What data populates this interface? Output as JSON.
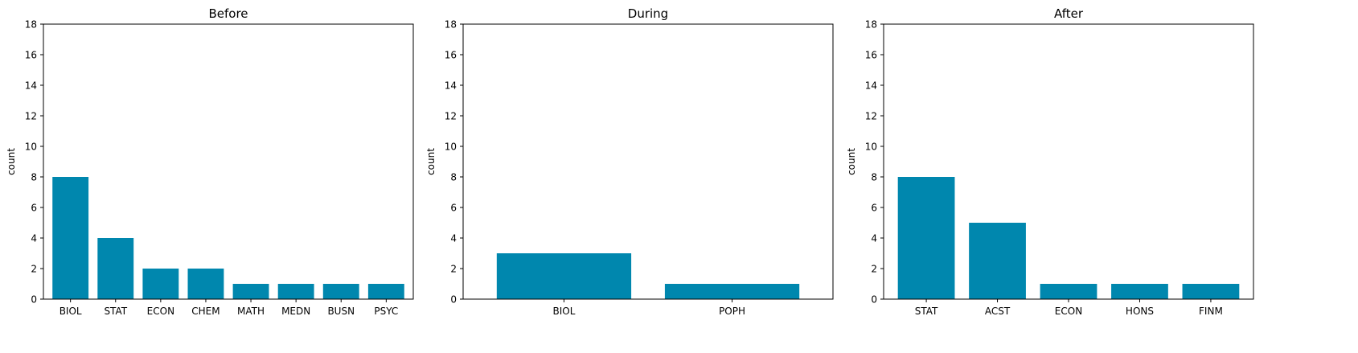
{
  "colors": {
    "bar": "#0087ae",
    "axis": "#000000",
    "background": "#ffffff"
  },
  "chart_data": [
    {
      "type": "bar",
      "title": "Before",
      "ylabel": "count",
      "xlabel": "",
      "ylim": [
        0,
        18
      ],
      "yticks": [
        0,
        2,
        4,
        6,
        8,
        10,
        12,
        14,
        16,
        18
      ],
      "grid": false,
      "categories": [
        "BIOL",
        "STAT",
        "ECON",
        "CHEM",
        "MATH",
        "MEDN",
        "BUSN",
        "PSYC"
      ],
      "values": [
        8,
        4,
        2,
        2,
        1,
        1,
        1,
        1
      ]
    },
    {
      "type": "bar",
      "title": "During",
      "ylabel": "count",
      "xlabel": "",
      "ylim": [
        0,
        18
      ],
      "yticks": [
        0,
        2,
        4,
        6,
        8,
        10,
        12,
        14,
        16,
        18
      ],
      "grid": false,
      "categories": [
        "BIOL",
        "POPH"
      ],
      "values": [
        3,
        1
      ]
    },
    {
      "type": "bar",
      "title": "After",
      "ylabel": "count",
      "xlabel": "",
      "ylim": [
        0,
        18
      ],
      "yticks": [
        0,
        2,
        4,
        6,
        8,
        10,
        12,
        14,
        16,
        18
      ],
      "grid": false,
      "categories": [
        "STAT",
        "ACST",
        "ECON",
        "HONS",
        "FINM"
      ],
      "values": [
        8,
        5,
        1,
        1,
        1
      ]
    }
  ]
}
